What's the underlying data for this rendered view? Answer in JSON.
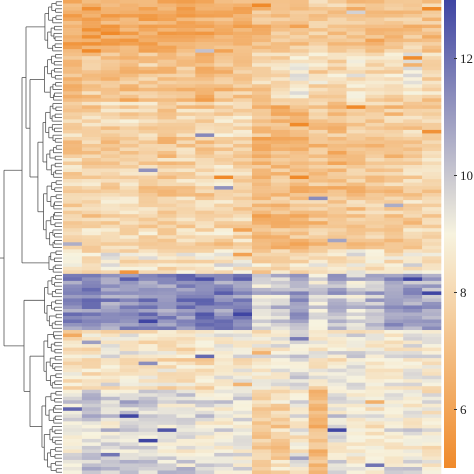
{
  "chart_data": {
    "type": "heatmap",
    "title": "",
    "xlabel": "",
    "ylabel": "",
    "row_dendrogram": true,
    "colorbar": {
      "ticks": [
        6,
        8,
        10,
        12
      ],
      "range": [
        5,
        13
      ],
      "colors": {
        "low": "#f08a2a",
        "mid": "#f7f3df",
        "high": "#3f45a3"
      }
    },
    "grid": false,
    "legend": "colorbar-right",
    "n_rows": 135,
    "n_cols": 20,
    "row_blocks": [
      {
        "rows": [
          0,
          14
        ],
        "column_levels": [
          6.2,
          6.0,
          6.3,
          6.1,
          6.2,
          6.0,
          6.1,
          6.3,
          6.4,
          6.5,
          7.0,
          7.2,
          7.1,
          7.6,
          7.4,
          7.0,
          6.9,
          7.2,
          7.3,
          7.1
        ]
      },
      {
        "rows": [
          15,
          28
        ],
        "column_levels": [
          7.0,
          7.2,
          6.9,
          7.1,
          7.3,
          7.0,
          7.2,
          6.8,
          7.1,
          7.4,
          7.6,
          8.0,
          8.6,
          8.1,
          7.8,
          8.4,
          8.0,
          8.2,
          8.8,
          7.9
        ]
      },
      {
        "rows": [
          29,
          70
        ],
        "column_levels": [
          7.6,
          7.8,
          7.7,
          7.9,
          7.8,
          7.5,
          7.8,
          7.7,
          7.9,
          7.8,
          6.8,
          6.9,
          7.0,
          7.2,
          6.9,
          7.2,
          7.4,
          7.3,
          7.6,
          7.8
        ]
      },
      {
        "rows": [
          71,
          77
        ],
        "column_levels": [
          8.6,
          8.4,
          8.8,
          8.5,
          8.7,
          8.3,
          8.6,
          8.4,
          8.8,
          8.7,
          8.0,
          8.1,
          8.2,
          8.5,
          8.3,
          8.9,
          8.6,
          8.4,
          8.8,
          8.6
        ]
      },
      {
        "rows": [
          78,
          93
        ],
        "column_levels": [
          11.2,
          11.6,
          11.0,
          11.4,
          11.5,
          11.2,
          11.3,
          11.7,
          11.4,
          11.5,
          9.6,
          9.8,
          10.6,
          9.4,
          10.2,
          9.8,
          10.4,
          10.8,
          11.0,
          10.6
        ]
      },
      {
        "rows": [
          94,
          110
        ],
        "column_levels": [
          8.4,
          8.2,
          8.8,
          8.6,
          8.3,
          8.5,
          8.4,
          8.2,
          8.7,
          8.9,
          8.8,
          9.0,
          9.4,
          8.6,
          8.9,
          9.2,
          8.8,
          8.7,
          9.0,
          8.9
        ]
      },
      {
        "rows": [
          111,
          134
        ],
        "column_levels": [
          9.6,
          9.8,
          9.7,
          10.0,
          9.9,
          9.6,
          9.5,
          9.4,
          9.3,
          9.2,
          7.6,
          7.9,
          8.8,
          7.2,
          9.4,
          9.0,
          8.8,
          9.0,
          9.1,
          8.9
        ]
      }
    ]
  }
}
